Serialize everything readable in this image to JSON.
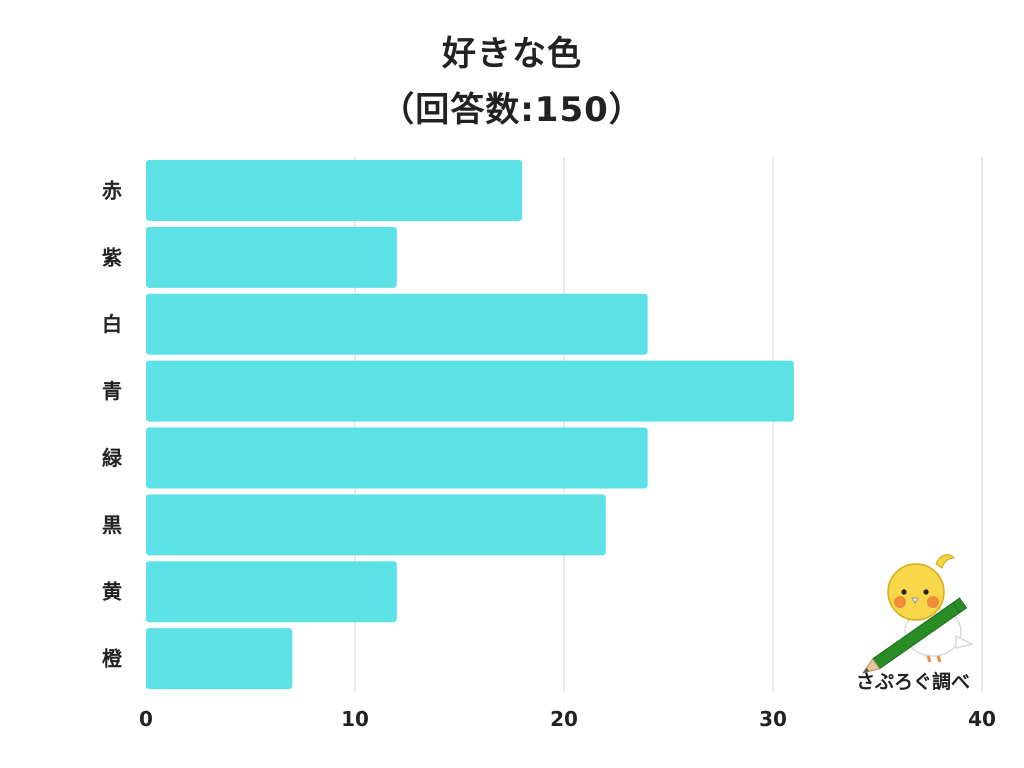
{
  "chart_data": {
    "type": "bar",
    "orientation": "horizontal",
    "title": "好きな色",
    "subtitle": "（回答数:150）",
    "categories": [
      "赤",
      "紫",
      "白",
      "青",
      "緑",
      "黒",
      "黄",
      "橙"
    ],
    "values": [
      18,
      12,
      24,
      31,
      24,
      22,
      12,
      7
    ],
    "xlim": [
      0,
      40
    ],
    "xticks": [
      0,
      10,
      20,
      30,
      40
    ],
    "grid": true,
    "bar_color": "#5ce1e6"
  },
  "watermark": {
    "caption": "さぷろぐ調べ",
    "icon": "bird-with-pencil-icon"
  }
}
